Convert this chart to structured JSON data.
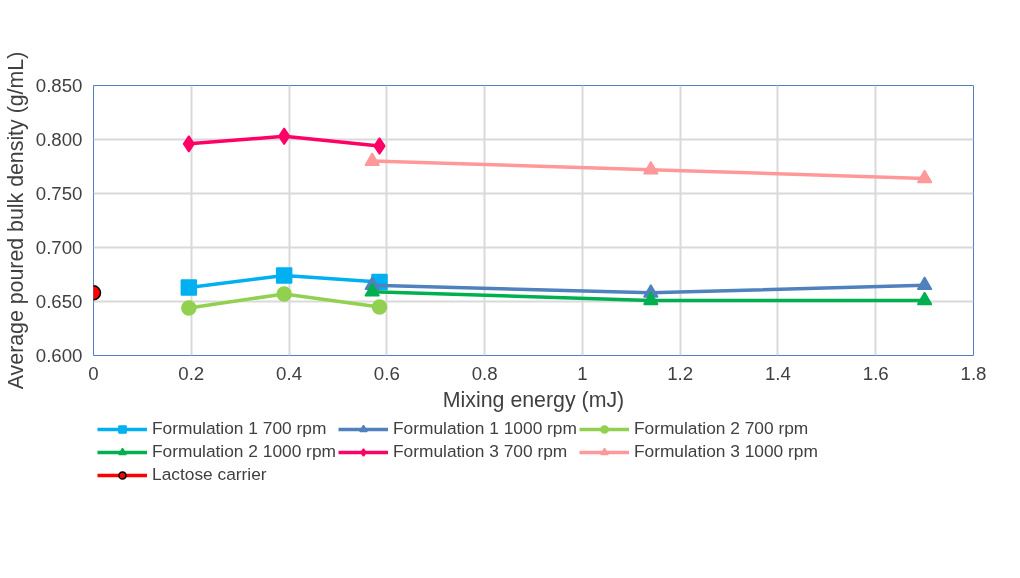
{
  "chart_data": {
    "type": "line",
    "xlabel": "Mixing energy (mJ)",
    "ylabel": "Average poured bulk density (g/mL)",
    "xlim": [
      0,
      1.8
    ],
    "xticks": [
      0,
      0.2,
      0.4,
      0.6,
      0.8,
      1,
      1.2,
      1.4,
      1.6,
      1.8
    ],
    "ylim": [
      0.6,
      0.85
    ],
    "yticks": [
      {
        "value": 0.6,
        "label": "0.600"
      },
      {
        "value": 0.65,
        "label": "0.650"
      },
      {
        "value": 0.7,
        "label": "0.700"
      },
      {
        "value": 0.75,
        "label": "0.750"
      },
      {
        "value": 0.8,
        "label": "0.800"
      },
      {
        "value": 0.85,
        "label": "0.850"
      }
    ],
    "grid": true,
    "legend": "bottom",
    "series": [
      {
        "name": "Formulation 1 700 rpm",
        "color": "#00b0f0",
        "marker": "square",
        "x": [
          0.195,
          0.39,
          0.585
        ],
        "values": [
          0.663,
          0.674,
          0.668
        ]
      },
      {
        "name": "Formulation 1 1000 rpm",
        "color": "#4f81bd",
        "marker": "triangle",
        "x": [
          0.57,
          1.14,
          1.7
        ],
        "values": [
          0.665,
          0.658,
          0.665
        ]
      },
      {
        "name": "Formulation 2 700 rpm",
        "color": "#92d050",
        "marker": "circle",
        "x": [
          0.195,
          0.39,
          0.585
        ],
        "values": [
          0.644,
          0.657,
          0.645
        ]
      },
      {
        "name": "Formulation 2 1000 rpm",
        "color": "#00b050",
        "marker": "triangle",
        "x": [
          0.57,
          1.14,
          1.7
        ],
        "values": [
          0.659,
          0.651,
          0.651
        ]
      },
      {
        "name": "Formulation 3 700 rpm",
        "color": "#ff0066",
        "marker": "diamond",
        "x": [
          0.195,
          0.39,
          0.585
        ],
        "values": [
          0.796,
          0.803,
          0.794
        ]
      },
      {
        "name": "Formulation 3 1000 rpm",
        "color": "#ff9999",
        "marker": "triangle",
        "x": [
          0.57,
          1.14,
          1.7
        ],
        "values": [
          0.78,
          0.772,
          0.764
        ]
      },
      {
        "name": "Lactose carrier",
        "color": "#ff0000",
        "marker": "circle",
        "type": "scatter",
        "x": [
          0
        ],
        "values": [
          0.658
        ]
      }
    ]
  }
}
